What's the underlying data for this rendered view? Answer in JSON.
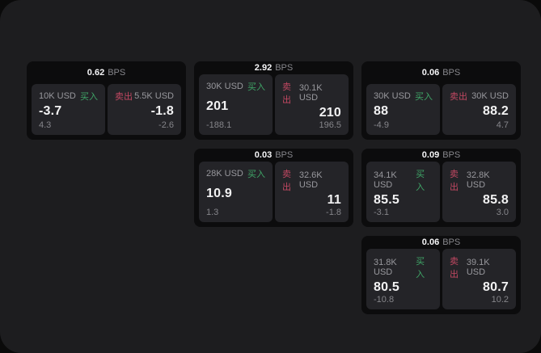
{
  "labels": {
    "bps_unit": "BPS",
    "buy": "买入",
    "sell": "卖出"
  },
  "colors": {
    "panel_background": "#1d1d1f",
    "card_background": "#0c0c0d",
    "pane_background": "#242428",
    "buy_green": "#3fa567",
    "sell_red": "#c24862",
    "value_text": "#f2f2f3",
    "muted_text": "#98989d"
  },
  "cards": [
    {
      "bps": "0.62",
      "buy": {
        "amount": "10K USD",
        "value": "-3.7",
        "sub": "4.3"
      },
      "sell": {
        "amount": "5.5K USD",
        "value": "-1.8",
        "sub": "-2.6"
      }
    },
    {
      "bps": "2.92",
      "buy": {
        "amount": "30K USD",
        "value": "201",
        "sub": "-188.1"
      },
      "sell": {
        "amount": "30.1K USD",
        "value": "210",
        "sub": "196.5"
      }
    },
    {
      "bps": "0.06",
      "buy": {
        "amount": "30K USD",
        "value": "88",
        "sub": "-4.9"
      },
      "sell": {
        "amount": "30K USD",
        "value": "88.2",
        "sub": "4.7"
      }
    },
    {
      "bps": "0.03",
      "buy": {
        "amount": "28K USD",
        "value": "10.9",
        "sub": "1.3"
      },
      "sell": {
        "amount": "32.6K USD",
        "value": "11",
        "sub": "-1.8"
      }
    },
    {
      "bps": "0.09",
      "buy": {
        "amount": "34.1K USD",
        "value": "85.5",
        "sub": "-3.1"
      },
      "sell": {
        "amount": "32.8K USD",
        "value": "85.8",
        "sub": "3.0"
      }
    },
    {
      "bps": "0.06",
      "buy": {
        "amount": "31.8K USD",
        "value": "80.5",
        "sub": "-10.8"
      },
      "sell": {
        "amount": "39.1K USD",
        "value": "80.7",
        "sub": "10.2"
      }
    }
  ]
}
